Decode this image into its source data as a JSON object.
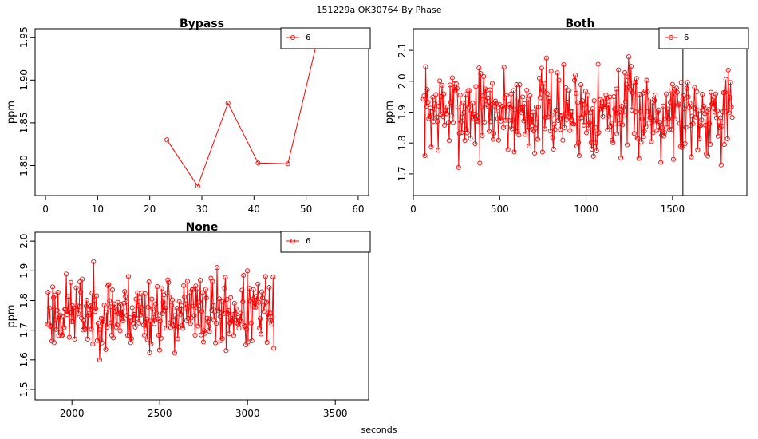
{
  "figure": {
    "suptitle": "151229a    OK30764   By Phase",
    "xlabel": "seconds",
    "ylabel": "ppm",
    "series_color": "#ff0000"
  },
  "chart_data": [
    {
      "type": "line",
      "title": "Bypass",
      "ylabel": "ppm",
      "legend": "6",
      "legend_placement": "top-right",
      "xlim": [
        -2,
        62
      ],
      "ylim": [
        1.765,
        1.96
      ],
      "xticks": [
        0,
        10,
        20,
        30,
        40,
        50,
        60
      ],
      "yticks": [
        1.8,
        1.85,
        1.9,
        1.95
      ],
      "ytick_labels": [
        "1.80",
        "1.85",
        "1.90",
        "1.95"
      ],
      "series": [
        {
          "name": "6",
          "x": [
            23.3,
            29.2,
            35.0,
            40.8,
            46.5,
            52.3
          ],
          "y": [
            1.83,
            1.776,
            1.873,
            1.803,
            1.802,
            1.95
          ]
        }
      ]
    },
    {
      "type": "line",
      "title": "Both",
      "ylabel": "ppm",
      "legend": "6",
      "legend_placement": "top-right",
      "xlim": [
        0,
        1930
      ],
      "ylim": [
        1.63,
        2.17
      ],
      "xticks": [
        0,
        500,
        1000,
        1500
      ],
      "yticks": [
        1.7,
        1.8,
        1.9,
        2.0,
        2.1
      ],
      "ytick_labels": [
        "1.7",
        "1.8",
        "1.9",
        "2.0",
        "2.1"
      ],
      "vline_x": 1560,
      "gen": {
        "x_start": 58,
        "x_end": 1845,
        "n": 395,
        "seed": 7,
        "mean": 1.905,
        "amp": 0.135,
        "min": 1.645,
        "max": 2.155
      }
    },
    {
      "type": "line",
      "title": "None",
      "ylabel": "ppm",
      "legend": "6",
      "legend_placement": "top-right",
      "xlim": [
        1790,
        3690
      ],
      "ylim": [
        1.465,
        2.03
      ],
      "xticks": [
        2000,
        2500,
        3000,
        3500
      ],
      "yticks": [
        1.5,
        1.6,
        1.7,
        1.8,
        1.9,
        2.0
      ],
      "ytick_labels": [
        "1.5",
        "1.6",
        "1.7",
        "1.8",
        "1.9",
        "2.0"
      ],
      "gen": {
        "x_start": 1860,
        "x_end": 3150,
        "n": 300,
        "seed": 23,
        "mean": 1.76,
        "amp": 0.115,
        "min": 1.48,
        "max": 2.01
      }
    }
  ]
}
